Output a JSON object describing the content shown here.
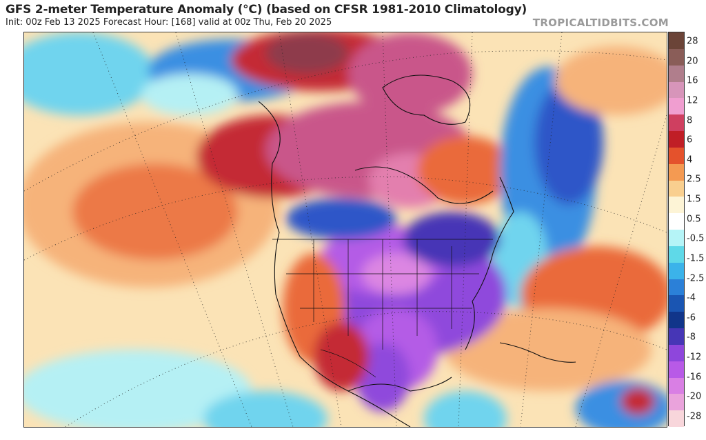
{
  "header": {
    "title": "GFS 2-meter Temperature Anomaly (°C) (based on CFSR 1981-2010 Climatology)",
    "subtitle": "Init: 00z Feb 13 2025   Forecast Hour: [168]   valid at 00z Thu, Feb 20 2025",
    "site": "TROPICALTIDBITS.COM"
  },
  "colorbar": {
    "labels": [
      "28",
      "20",
      "16",
      "12",
      "8",
      "6",
      "4",
      "2.5",
      "1.5",
      "0.5",
      "-0.5",
      "-1.5",
      "-2.5",
      "-4",
      "-6",
      "-8",
      "-12",
      "-16",
      "-20",
      "-28"
    ],
    "colors": [
      "#6b4438",
      "#8a5d58",
      "#b07e8c",
      "#d795ba",
      "#f09ed0",
      "#cf3f60",
      "#c01e26",
      "#e4522c",
      "#f49a52",
      "#f9cf8f",
      "#fdf4d6",
      "#ffffff",
      "#b5f4f7",
      "#5fd9e8",
      "#3bb3ea",
      "#2b80d8",
      "#1a55b2",
      "#11358a",
      "#4636b6",
      "#8e46dc",
      "#b85ae7",
      "#d97fe4",
      "#eaa3dc",
      "#f8d6db"
    ]
  },
  "map": {
    "colors": {
      "ocean_warm": "#fbe3b6",
      "warm_mid": "#f6b37a",
      "warm_strong": "#ea6a3a",
      "hot_red": "#c42a34",
      "magenta": "#c9578a",
      "pink": "#e37fae",
      "maroon": "#8e3a4c",
      "cold_purple": "#8f48dc",
      "violet": "#b45ce6",
      "lavender": "#dc86e2",
      "deep_blue": "#2f57c8",
      "blue": "#3b8fe2",
      "cyan": "#6fd4ee",
      "light_cyan": "#b5f0f4"
    }
  }
}
